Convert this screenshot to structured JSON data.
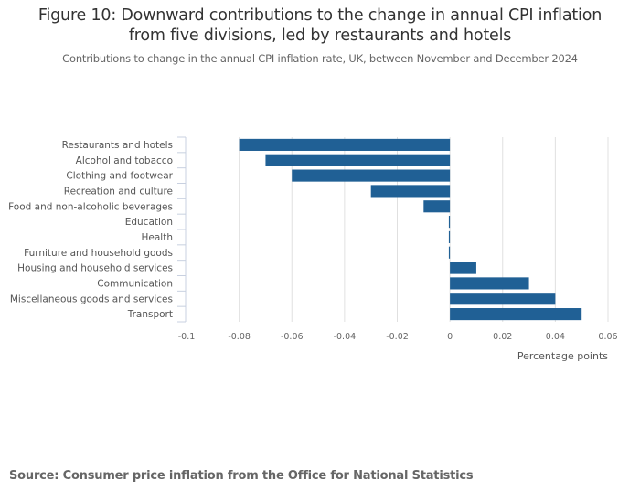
{
  "chart_data": {
    "type": "bar",
    "orientation": "horizontal",
    "title": "Figure 10: Downward contributions to the change in annual CPI inflation from five divisions, led by restaurants and hotels",
    "title_lines": [
      "Figure 10: Downward contributions to the change in annual CPI inflation",
      "from five divisions, led by restaurants and hotels"
    ],
    "subtitle": "Contributions to change in the annual CPI inflation rate, UK, between November and December 2024",
    "xlabel": "Percentage points",
    "ylabel": "",
    "xlim": [
      -0.1,
      0.06
    ],
    "xticks": [
      -0.1,
      -0.08,
      -0.06,
      -0.04,
      -0.02,
      0,
      0.02,
      0.04,
      0.06
    ],
    "xtick_labels": [
      "-0.1",
      "-0.08",
      "-0.06",
      "-0.04",
      "-0.02",
      "0",
      "0.02",
      "0.04",
      "0.06"
    ],
    "grid": "vertical",
    "legend": "none",
    "categories": [
      "Restaurants and hotels",
      "Alcohol and tobacco",
      "Clothing and footwear",
      "Recreation and culture",
      "Food and non-alcoholic beverages",
      "Education",
      "Health",
      "Furniture and household goods",
      "Housing and household services",
      "Communication",
      "Miscellaneous goods and services",
      "Transport"
    ],
    "values": [
      -0.08,
      -0.07,
      -0.06,
      -0.03,
      -0.01,
      -0.0004,
      -0.0004,
      -0.0004,
      0.01,
      0.03,
      0.04,
      0.05
    ],
    "bar_color": "#206095"
  },
  "source": "Source: Consumer price inflation from the Office for National Statistics"
}
